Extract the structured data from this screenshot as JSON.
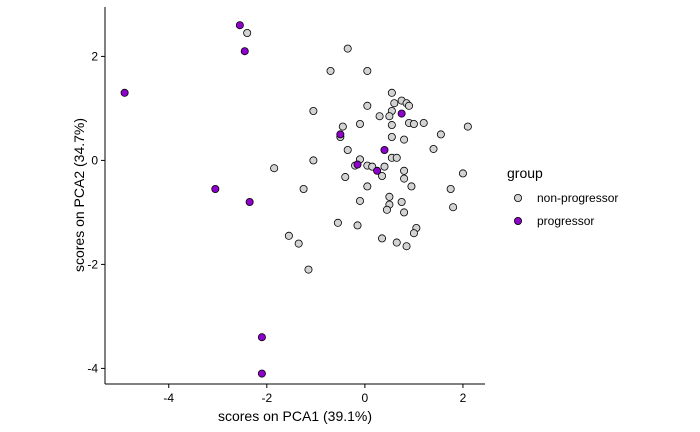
{
  "chart_data": {
    "type": "scatter",
    "title": "",
    "xlabel": "scores on PCA1 (39.1%)",
    "ylabel": "scores on PCA2 (34.7%)",
    "xlim": [
      -5.3,
      2.45
    ],
    "ylim": [
      -4.3,
      2.95
    ],
    "xticks": [
      -4,
      -2,
      0,
      2
    ],
    "yticks": [
      -4,
      -2,
      0,
      2
    ],
    "grid": false,
    "legend": {
      "title": "group",
      "position": "right"
    },
    "series": [
      {
        "name": "non-progressor",
        "color": "#d3d3d3",
        "points": [
          [
            -2.4,
            2.45
          ],
          [
            -0.35,
            2.15
          ],
          [
            -0.7,
            1.72
          ],
          [
            0.05,
            1.72
          ],
          [
            0.55,
            1.3
          ],
          [
            0.75,
            1.15
          ],
          [
            0.85,
            1.1
          ],
          [
            0.6,
            1.1
          ],
          [
            0.9,
            1.05
          ],
          [
            0.05,
            1.05
          ],
          [
            0.55,
            0.95
          ],
          [
            0.5,
            0.85
          ],
          [
            -1.05,
            0.95
          ],
          [
            0.3,
            0.85
          ],
          [
            -0.1,
            0.7
          ],
          [
            0.9,
            0.72
          ],
          [
            1.0,
            0.7
          ],
          [
            0.55,
            0.68
          ],
          [
            1.2,
            0.72
          ],
          [
            2.1,
            0.65
          ],
          [
            -0.45,
            0.65
          ],
          [
            -0.5,
            0.45
          ],
          [
            1.55,
            0.5
          ],
          [
            0.55,
            0.45
          ],
          [
            0.8,
            0.4
          ],
          [
            1.4,
            0.22
          ],
          [
            -0.35,
            0.2
          ],
          [
            0.55,
            0.05
          ],
          [
            0.65,
            0.05
          ],
          [
            -0.1,
            0.02
          ],
          [
            0.05,
            -0.1
          ],
          [
            0.15,
            -0.12
          ],
          [
            0.4,
            -0.12
          ],
          [
            -1.05,
            0.0
          ],
          [
            -1.85,
            -0.15
          ],
          [
            -0.2,
            -0.1
          ],
          [
            0.8,
            -0.2
          ],
          [
            2.0,
            -0.25
          ],
          [
            -0.4,
            -0.32
          ],
          [
            0.35,
            -0.3
          ],
          [
            0.8,
            -0.35
          ],
          [
            0.95,
            -0.5
          ],
          [
            0.05,
            -0.5
          ],
          [
            -1.25,
            -0.55
          ],
          [
            1.75,
            -0.55
          ],
          [
            0.5,
            -0.7
          ],
          [
            -0.1,
            -0.78
          ],
          [
            0.75,
            -0.8
          ],
          [
            0.5,
            -0.85
          ],
          [
            1.8,
            -0.9
          ],
          [
            0.45,
            -0.95
          ],
          [
            0.8,
            -1.0
          ],
          [
            -0.55,
            -1.2
          ],
          [
            -0.15,
            -1.25
          ],
          [
            1.05,
            -1.3
          ],
          [
            1.0,
            -1.4
          ],
          [
            -1.55,
            -1.45
          ],
          [
            0.35,
            -1.5
          ],
          [
            0.65,
            -1.58
          ],
          [
            0.85,
            -1.65
          ],
          [
            -1.35,
            -1.6
          ],
          [
            -1.15,
            -2.1
          ]
        ]
      },
      {
        "name": "progressor",
        "color": "#8e00cc",
        "points": [
          [
            -2.55,
            2.6
          ],
          [
            -2.45,
            2.1
          ],
          [
            -4.9,
            1.3
          ],
          [
            0.75,
            0.9
          ],
          [
            -0.5,
            0.5
          ],
          [
            0.4,
            0.2
          ],
          [
            -0.15,
            -0.08
          ],
          [
            0.25,
            -0.2
          ],
          [
            -3.05,
            -0.55
          ],
          [
            -2.35,
            -0.8
          ],
          [
            -2.1,
            -3.4
          ],
          [
            -2.1,
            -4.1
          ]
        ]
      }
    ]
  }
}
